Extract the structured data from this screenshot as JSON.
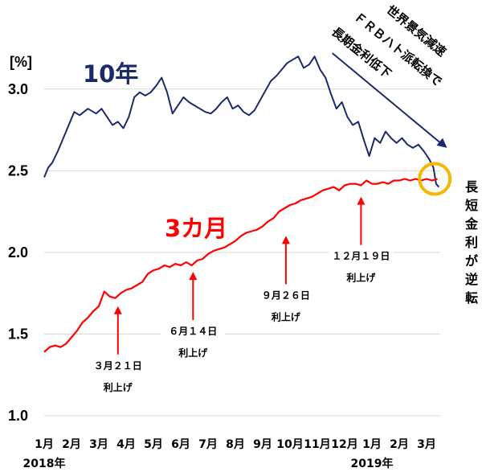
{
  "chart_data": {
    "type": "line",
    "title": "",
    "ylabel": "[%]",
    "xlabel": "",
    "ylim": [
      1.0,
      3.25
    ],
    "yticks": [
      "1.0",
      "1.5",
      "2.0",
      "2.5",
      "3.0"
    ],
    "grid": "horizontal",
    "x_tick_labels": [
      "1月",
      "2月",
      "3月",
      "4月",
      "5月",
      "6月",
      "7月",
      "8月",
      "9月",
      "10月",
      "11月",
      "12月",
      "1月",
      "2月",
      "3月"
    ],
    "year_labels": [
      {
        "text": "2018年",
        "month_index": 1
      },
      {
        "text": "2019年",
        "month_index": 13
      }
    ],
    "series": [
      {
        "name": "10年",
        "color": "#1b2a6b",
        "points": [
          [
            1.0,
            2.46
          ],
          [
            1.15,
            2.52
          ],
          [
            1.3,
            2.55
          ],
          [
            1.5,
            2.62
          ],
          [
            1.7,
            2.7
          ],
          [
            1.9,
            2.78
          ],
          [
            2.1,
            2.86
          ],
          [
            2.3,
            2.84
          ],
          [
            2.6,
            2.88
          ],
          [
            2.9,
            2.85
          ],
          [
            3.1,
            2.88
          ],
          [
            3.3,
            2.83
          ],
          [
            3.5,
            2.78
          ],
          [
            3.7,
            2.8
          ],
          [
            3.9,
            2.76
          ],
          [
            4.1,
            2.83
          ],
          [
            4.3,
            2.95
          ],
          [
            4.5,
            2.98
          ],
          [
            4.7,
            2.96
          ],
          [
            4.9,
            2.98
          ],
          [
            5.1,
            3.02
          ],
          [
            5.3,
            3.07
          ],
          [
            5.5,
            2.98
          ],
          [
            5.7,
            2.85
          ],
          [
            5.9,
            2.9
          ],
          [
            6.1,
            2.95
          ],
          [
            6.3,
            2.92
          ],
          [
            6.5,
            2.9
          ],
          [
            6.7,
            2.88
          ],
          [
            6.9,
            2.86
          ],
          [
            7.1,
            2.85
          ],
          [
            7.3,
            2.88
          ],
          [
            7.5,
            2.92
          ],
          [
            7.7,
            2.95
          ],
          [
            7.9,
            2.88
          ],
          [
            8.1,
            2.9
          ],
          [
            8.3,
            2.86
          ],
          [
            8.5,
            2.84
          ],
          [
            8.7,
            2.87
          ],
          [
            8.9,
            2.93
          ],
          [
            9.1,
            2.99
          ],
          [
            9.3,
            3.05
          ],
          [
            9.5,
            3.08
          ],
          [
            9.7,
            3.12
          ],
          [
            9.9,
            3.16
          ],
          [
            10.1,
            3.18
          ],
          [
            10.3,
            3.2
          ],
          [
            10.5,
            3.13
          ],
          [
            10.7,
            3.15
          ],
          [
            10.9,
            3.2
          ],
          [
            11.1,
            3.12
          ],
          [
            11.3,
            3.07
          ],
          [
            11.5,
            2.97
          ],
          [
            11.7,
            2.88
          ],
          [
            11.9,
            2.92
          ],
          [
            12.1,
            2.83
          ],
          [
            12.3,
            2.78
          ],
          [
            12.5,
            2.8
          ],
          [
            12.7,
            2.69
          ],
          [
            12.9,
            2.59
          ],
          [
            13.1,
            2.7
          ],
          [
            13.3,
            2.67
          ],
          [
            13.5,
            2.74
          ],
          [
            13.7,
            2.7
          ],
          [
            13.9,
            2.67
          ],
          [
            14.1,
            2.7
          ],
          [
            14.3,
            2.66
          ],
          [
            14.5,
            2.64
          ],
          [
            14.7,
            2.66
          ],
          [
            14.9,
            2.62
          ],
          [
            15.1,
            2.57
          ],
          [
            15.25,
            2.52
          ],
          [
            15.35,
            2.42
          ],
          [
            15.45,
            2.4
          ]
        ]
      },
      {
        "name": "3カ月",
        "color": "#ff0000",
        "points": [
          [
            1.0,
            1.39
          ],
          [
            1.2,
            1.42
          ],
          [
            1.4,
            1.43
          ],
          [
            1.6,
            1.42
          ],
          [
            1.8,
            1.44
          ],
          [
            2.0,
            1.48
          ],
          [
            2.2,
            1.52
          ],
          [
            2.4,
            1.57
          ],
          [
            2.6,
            1.6
          ],
          [
            2.8,
            1.64
          ],
          [
            3.0,
            1.67
          ],
          [
            3.2,
            1.76
          ],
          [
            3.4,
            1.73
          ],
          [
            3.6,
            1.72
          ],
          [
            3.8,
            1.75
          ],
          [
            4.0,
            1.77
          ],
          [
            4.2,
            1.78
          ],
          [
            4.4,
            1.8
          ],
          [
            4.6,
            1.82
          ],
          [
            4.8,
            1.87
          ],
          [
            5.0,
            1.89
          ],
          [
            5.2,
            1.9
          ],
          [
            5.4,
            1.92
          ],
          [
            5.6,
            1.91
          ],
          [
            5.8,
            1.93
          ],
          [
            6.0,
            1.92
          ],
          [
            6.2,
            1.94
          ],
          [
            6.4,
            1.92
          ],
          [
            6.6,
            1.95
          ],
          [
            6.8,
            1.96
          ],
          [
            7.0,
            1.99
          ],
          [
            7.2,
            2.01
          ],
          [
            7.4,
            2.02
          ],
          [
            7.6,
            2.03
          ],
          [
            7.8,
            2.05
          ],
          [
            8.0,
            2.07
          ],
          [
            8.2,
            2.1
          ],
          [
            8.4,
            2.12
          ],
          [
            8.6,
            2.13
          ],
          [
            8.8,
            2.14
          ],
          [
            9.0,
            2.16
          ],
          [
            9.2,
            2.19
          ],
          [
            9.4,
            2.21
          ],
          [
            9.6,
            2.25
          ],
          [
            9.8,
            2.27
          ],
          [
            10.0,
            2.29
          ],
          [
            10.2,
            2.3
          ],
          [
            10.4,
            2.32
          ],
          [
            10.6,
            2.33
          ],
          [
            10.8,
            2.34
          ],
          [
            11.0,
            2.36
          ],
          [
            11.2,
            2.38
          ],
          [
            11.4,
            2.39
          ],
          [
            11.6,
            2.4
          ],
          [
            11.8,
            2.38
          ],
          [
            12.0,
            2.41
          ],
          [
            12.2,
            2.42
          ],
          [
            12.4,
            2.42
          ],
          [
            12.6,
            2.41
          ],
          [
            12.8,
            2.44
          ],
          [
            13.0,
            2.42
          ],
          [
            13.2,
            2.42
          ],
          [
            13.4,
            2.43
          ],
          [
            13.6,
            2.42
          ],
          [
            13.8,
            2.44
          ],
          [
            14.0,
            2.44
          ],
          [
            14.2,
            2.45
          ],
          [
            14.4,
            2.44
          ],
          [
            14.6,
            2.45
          ],
          [
            14.8,
            2.44
          ],
          [
            15.0,
            2.45
          ],
          [
            15.2,
            2.44
          ],
          [
            15.4,
            2.45
          ]
        ]
      }
    ],
    "series_labels": [
      {
        "text": "10年",
        "color": "#1b2a6b"
      },
      {
        "text": "3カ月",
        "color": "#ff0000"
      }
    ],
    "annotations": [
      {
        "text": "世界景気減速",
        "type": "trend_note"
      },
      {
        "text": "ＦＲＢハト派転換で",
        "type": "trend_note"
      },
      {
        "text": "長期金利低下",
        "type": "trend_note"
      },
      {
        "text": "長短金利が逆転",
        "type": "vertical_note"
      }
    ],
    "rate_hikes": [
      {
        "date": "３月２１日",
        "label": "利上げ",
        "x": 3.7,
        "y": 1.72
      },
      {
        "date": "６月１４日",
        "label": "利上げ",
        "x": 6.45,
        "y": 1.93
      },
      {
        "date": "９月２６日",
        "label": "利上げ",
        "x": 9.85,
        "y": 2.15
      },
      {
        "date": "１２月１９日",
        "label": "利上げ",
        "x": 12.6,
        "y": 2.39
      }
    ],
    "inversion_point": {
      "x": 15.3,
      "y": 2.45
    }
  }
}
